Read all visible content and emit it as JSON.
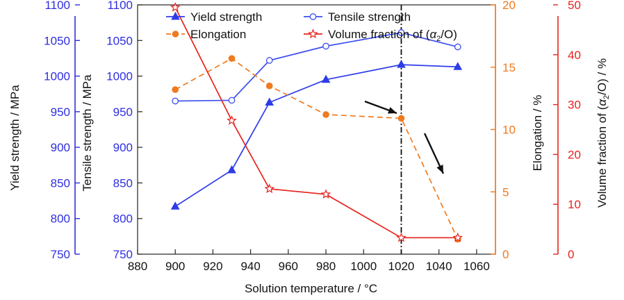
{
  "chart_data": {
    "type": "line",
    "xlabel": "Solution temperature / °C",
    "xlim": [
      880,
      1070
    ],
    "xticks": [
      880,
      900,
      920,
      940,
      960,
      980,
      1000,
      1020,
      1040,
      1060
    ],
    "axes": {
      "yield": {
        "label": "Yield strength / MPa",
        "lim": [
          750,
          1100
        ],
        "ticks": [
          750,
          800,
          850,
          900,
          950,
          1000,
          1050,
          1100
        ],
        "color": "#2e2ee0"
      },
      "tensile": {
        "label": "Tensile strength / MPa",
        "lim": [
          750,
          1100
        ],
        "ticks": [
          750,
          800,
          850,
          900,
          950,
          1000,
          1050,
          1100
        ],
        "color": "#2e2ee0"
      },
      "elongation": {
        "label": "Elongation / %",
        "lim": [
          0,
          20
        ],
        "ticks": [
          0,
          5,
          10,
          15,
          20
        ],
        "color": "#f07a1e"
      },
      "volume": {
        "label_prefix": "Volume fraction of (",
        "label_alpha": "α",
        "label_sub": "2",
        "label_suffix": "/O) / %",
        "lim": [
          0,
          50
        ],
        "ticks": [
          0,
          10,
          20,
          30,
          40,
          50
        ],
        "color": "#e8231d"
      }
    },
    "series": [
      {
        "name": "Yield strength",
        "axis": "yield",
        "color": "#2e3ce8",
        "marker": "triangle",
        "dashed": false,
        "x": [
          900,
          930,
          950,
          980,
          1020,
          1050
        ],
        "y": [
          817,
          868,
          963,
          995,
          1016,
          1013
        ]
      },
      {
        "name": "Tensile strength",
        "axis": "tensile",
        "color": "#3b4ef0",
        "marker": "circle",
        "dashed": false,
        "x": [
          900,
          930,
          950,
          980,
          1020,
          1050
        ],
        "y": [
          965,
          966,
          1022,
          1042,
          1061,
          1041
        ]
      },
      {
        "name": "Elongation",
        "axis": "elongation",
        "color": "#f07a1e",
        "marker": "dot",
        "dashed": true,
        "x": [
          900,
          930,
          950,
          980,
          1020,
          1050
        ],
        "y": [
          13.2,
          15.7,
          13.5,
          11.2,
          10.9,
          1.2
        ]
      },
      {
        "name": "Volume fraction of (α₂/O)",
        "axis": "volume",
        "color": "#e8231d",
        "marker": "star",
        "dashed": false,
        "x": [
          900,
          930,
          950,
          980,
          1020,
          1050
        ],
        "y": [
          49.5,
          26.8,
          13.1,
          12.0,
          3.3,
          3.3
        ]
      }
    ],
    "legend": {
      "placement": "top",
      "items": [
        "Yield strength",
        "Tensile strength",
        "Elongation",
        "Volume fraction of ("
      ],
      "volume_alpha": "α",
      "volume_sub": "2",
      "volume_suffix": "/O)"
    },
    "annotations": {
      "vertical_line_x": 1020,
      "arrows": 2
    },
    "grid": false
  }
}
